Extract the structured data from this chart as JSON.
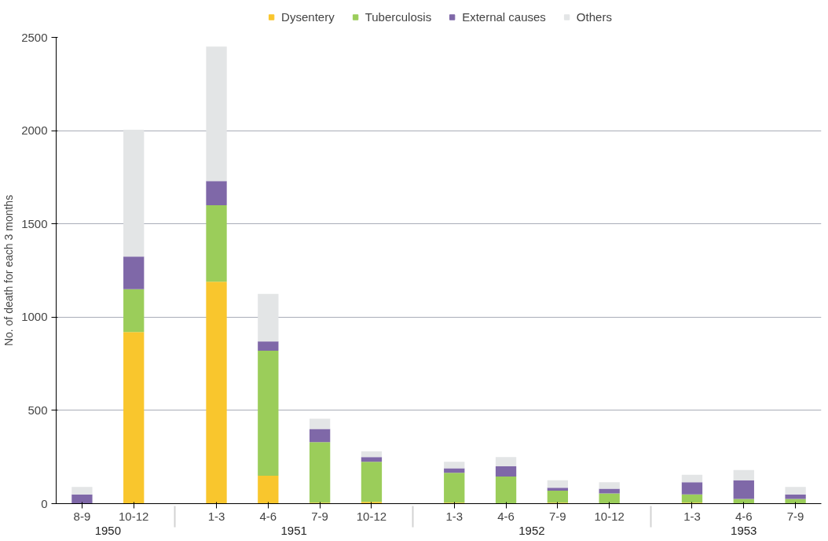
{
  "chart_data": {
    "type": "bar",
    "stacked": true,
    "ylabel": "No. of death for each 3 months",
    "categories": [
      [
        "1950",
        "8-9"
      ],
      [
        null,
        "10-12"
      ],
      [
        "1951",
        "1-3"
      ],
      [
        null,
        "4-6"
      ],
      [
        null,
        "7-9"
      ],
      [
        null,
        "10-12"
      ],
      [
        "1952",
        "1-3"
      ],
      [
        null,
        "4-6"
      ],
      [
        null,
        "7-9"
      ],
      [
        null,
        "10-12"
      ],
      [
        "1953",
        "1-3"
      ],
      [
        null,
        "4-6"
      ],
      [
        null,
        "7-9"
      ]
    ],
    "series": [
      {
        "name": "Dysentery",
        "color": "#f9c62d",
        "values": [
          0,
          920,
          1190,
          150,
          5,
          10,
          5,
          0,
          5,
          0,
          5,
          0,
          0
        ]
      },
      {
        "name": "Tuberculosis",
        "color": "#9bcd5a",
        "values": [
          0,
          230,
          410,
          670,
          325,
          215,
          160,
          145,
          65,
          55,
          45,
          25,
          25
        ]
      },
      {
        "name": "External causes",
        "color": "#7f68a8",
        "values": [
          50,
          175,
          130,
          50,
          70,
          25,
          25,
          55,
          15,
          25,
          65,
          100,
          25
        ]
      },
      {
        "name": "Others",
        "color": "#e3e5e6",
        "values": [
          40,
          680,
          720,
          255,
          55,
          30,
          35,
          50,
          40,
          35,
          40,
          55,
          40
        ]
      }
    ],
    "ylim": [
      0,
      2500
    ],
    "yticks": [
      0,
      500,
      1000,
      1500,
      2000,
      2500
    ],
    "grid": "y",
    "legend": "top"
  }
}
